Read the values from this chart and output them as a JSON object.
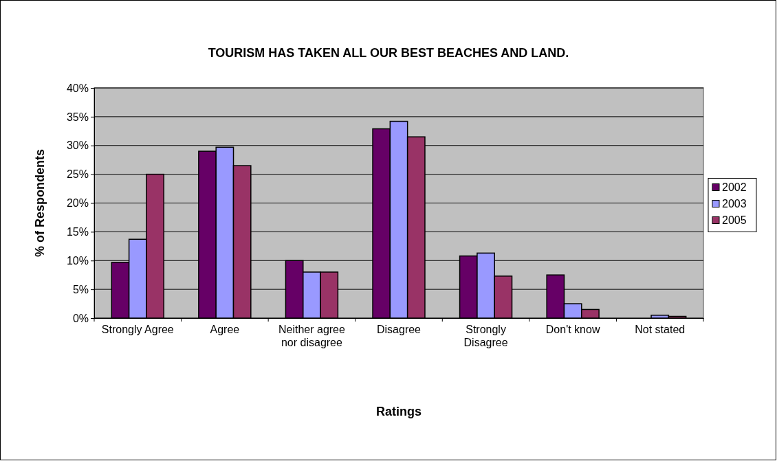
{
  "chart_data": {
    "type": "bar",
    "title": "TOURISM HAS TAKEN ALL OUR BEST BEACHES AND LAND.",
    "xlabel": "Ratings",
    "ylabel": "% of Respondents",
    "categories": [
      "Strongly Agree",
      "Agree",
      "Neither agree nor disagree",
      "Disagree",
      "Strongly Disagree",
      "Don't know",
      "Not stated"
    ],
    "series": [
      {
        "name": "2002",
        "color": "#660066",
        "values": [
          9.7,
          29.0,
          10.0,
          32.9,
          10.8,
          7.5,
          0
        ]
      },
      {
        "name": "2003",
        "color": "#9999ff",
        "values": [
          13.7,
          29.7,
          8.0,
          34.2,
          11.3,
          2.5,
          0.5
        ]
      },
      {
        "name": "2005",
        "color": "#993366",
        "values": [
          25.0,
          26.5,
          8.0,
          31.5,
          7.3,
          1.5,
          0.3
        ]
      }
    ],
    "ylim": [
      0,
      40
    ],
    "yticks": [
      {
        "value": 0,
        "label": "0%"
      },
      {
        "value": 5,
        "label": "5%"
      },
      {
        "value": 10,
        "label": "10%"
      },
      {
        "value": 15,
        "label": "15%"
      },
      {
        "value": 20,
        "label": "20%"
      },
      {
        "value": 25,
        "label": "25%"
      },
      {
        "value": 30,
        "label": "30%"
      },
      {
        "value": 35,
        "label": "35%"
      },
      {
        "value": 40,
        "label": "40%"
      }
    ],
    "grid": "y",
    "legend": "right"
  }
}
